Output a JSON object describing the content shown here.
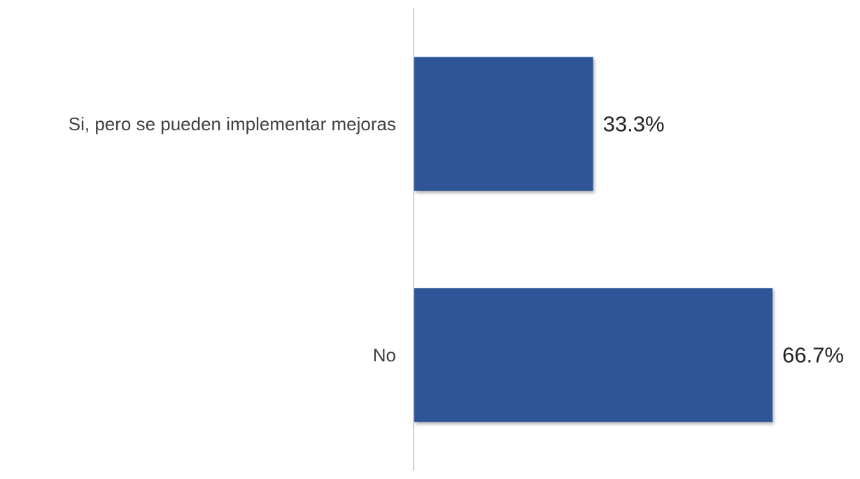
{
  "chart_data": {
    "type": "bar",
    "orientation": "horizontal",
    "categories": [
      "Si, pero se pueden implementar mejoras",
      "No"
    ],
    "values": [
      33.3,
      66.7
    ],
    "value_labels": [
      "33.3%",
      "66.7%"
    ],
    "xlim": [
      0,
      66.7
    ],
    "grid": false,
    "legend": "none",
    "title": "",
    "xlabel": "",
    "ylabel": "",
    "colors": {
      "bar": "#2f5597",
      "axis": "#d0d0d0",
      "category_text": "#404040",
      "value_text": "#222222"
    }
  }
}
